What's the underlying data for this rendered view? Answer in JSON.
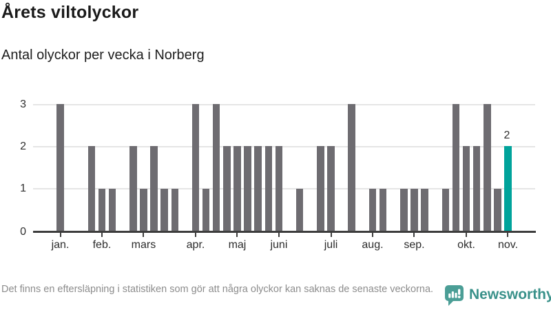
{
  "header": {
    "title": "Årets viltolyckor",
    "subtitle": "Antal olyckor per vecka i Norberg"
  },
  "chart_data": {
    "type": "bar",
    "title": "Årets viltolyckor",
    "subtitle": "Antal olyckor per vecka i Norberg",
    "xlabel": "",
    "ylabel": "",
    "ylim": [
      0,
      3.3
    ],
    "grid": true,
    "legend": false,
    "weeks_shown": 44,
    "values_by_week": [
      3,
      0,
      0,
      2,
      1,
      1,
      0,
      2,
      1,
      2,
      1,
      1,
      0,
      3,
      1,
      3,
      2,
      2,
      2,
      2,
      2,
      2,
      0,
      1,
      0,
      2,
      2,
      0,
      3,
      0,
      1,
      1,
      0,
      1,
      1,
      1,
      0,
      1,
      3,
      2,
      2,
      3,
      1,
      2
    ],
    "highlight_week_index": 43,
    "annotation": {
      "week_index": 43,
      "label": "2"
    },
    "y_ticks": [
      0,
      1,
      2,
      3
    ],
    "month_ticks": [
      {
        "label": "jan.",
        "week_index": 0
      },
      {
        "label": "feb.",
        "week_index": 4
      },
      {
        "label": "mars",
        "week_index": 8
      },
      {
        "label": "apr.",
        "week_index": 13
      },
      {
        "label": "maj",
        "week_index": 17
      },
      {
        "label": "juni",
        "week_index": 21
      },
      {
        "label": "juli",
        "week_index": 26
      },
      {
        "label": "aug.",
        "week_index": 30
      },
      {
        "label": "sep.",
        "week_index": 34
      },
      {
        "label": "okt.",
        "week_index": 39
      },
      {
        "label": "nov.",
        "week_index": 43
      }
    ],
    "colors": {
      "bar": "#6e6c71",
      "highlight": "#00a39b",
      "gridline": "#e5e5e5",
      "axis": "#3d3d3d"
    }
  },
  "footer": {
    "note": "Det finns en eftersläpning i statistiken som gör att några olyckor kan saknas de senaste veckorna.",
    "brand": "Newsworthy",
    "brand_color": "#39918a",
    "brand_icon": "newsworthy-speech-bubble-chart-icon"
  }
}
